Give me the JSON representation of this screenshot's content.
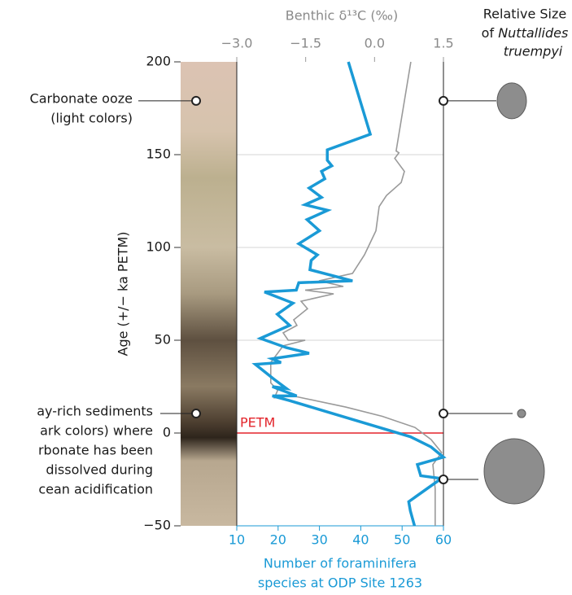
{
  "y_axis_label": "Age (+/− ka PETM)",
  "size_title": {
    "line1": "Relative Size",
    "line2": "of",
    "species": [
      "Nuttallides",
      "truempyi"
    ]
  },
  "chart_data": {
    "type": "line",
    "orientation": "vertical",
    "ylim": [
      -50,
      200
    ],
    "yticks": [
      200,
      150,
      100,
      50,
      0,
      {
        "value": -50,
        "label": "−50"
      }
    ],
    "xlim": [
      10,
      60
    ],
    "xticks": [
      10,
      20,
      30,
      40,
      50,
      60
    ],
    "x2lim": [
      -3.0,
      1.5
    ],
    "x2ticks": [
      {
        "value": -3.0,
        "label": "−3.0"
      },
      {
        "value": -1.5,
        "label": "−1.5"
      },
      {
        "value": 0,
        "label": "0.0"
      },
      1.5
    ],
    "xlabel": [
      "Number of foraminifera",
      "species at ODP Site 1263"
    ],
    "x2label": "Benthic δ¹³C (‰)",
    "grid": true,
    "petm": {
      "label": "PETM",
      "age": 0,
      "color": "#e3242b"
    },
    "series": [
      {
        "color": "#1a9ad6",
        "axis": "x",
        "ages": [
          200,
          161,
          152.6,
          147,
          144,
          141,
          137,
          132,
          127,
          123,
          120,
          115,
          109,
          102,
          96,
          93,
          88,
          82,
          81,
          77,
          76,
          70,
          64,
          58,
          51,
          46,
          43,
          40,
          38,
          37,
          29,
          24,
          25,
          20,
          20,
          17.5,
          -2,
          -7.5,
          -13,
          -17,
          -23,
          -24.5,
          -37,
          -42,
          -50
        ],
        "values": [
          37,
          42.3,
          31.9,
          31.9,
          33,
          30.5,
          31.3,
          27.5,
          30.5,
          26.5,
          32,
          27,
          30,
          25,
          29.5,
          28,
          27.7,
          38,
          25,
          24.4,
          16.7,
          23.6,
          19.8,
          22.8,
          15.7,
          22,
          27.5,
          18.5,
          20.7,
          14.5,
          19,
          22,
          18.6,
          24.5,
          18.6,
          22.7,
          52,
          57,
          60,
          53.7,
          54.5,
          59.5,
          51.6,
          52,
          53
        ]
      },
      {
        "color": "#9a9a9a",
        "axis": "x2",
        "ages": [
          200,
          152,
          151,
          148,
          141,
          135,
          128,
          122,
          109,
          96,
          86,
          82,
          79,
          77,
          75,
          71,
          67,
          61,
          58,
          54,
          50,
          50,
          47,
          38,
          27,
          23,
          19,
          20,
          14,
          9,
          3,
          -3.5,
          -10.5,
          -17,
          -30,
          -50
        ],
        "values": [
          0.79,
          0.47,
          0.53,
          0.44,
          0.65,
          0.58,
          0.26,
          0.1,
          0.03,
          -0.22,
          -0.48,
          -1.21,
          -0.68,
          -1.51,
          -0.89,
          -1.6,
          -1.46,
          -1.76,
          -1.69,
          -1.99,
          -1.88,
          -1.51,
          -1.99,
          -2.26,
          -2.26,
          -2.11,
          -2.18,
          -1.78,
          -0.63,
          0.17,
          0.88,
          1.23,
          1.46,
          1.27,
          1.32,
          1.32
        ]
      }
    ],
    "annotations": [
      {
        "age": 179,
        "lines": [
          "Carbonate ooze",
          "(light colors)"
        ]
      },
      {
        "age": 10.5,
        "lines": [
          "ay-rich sediments",
          "ark colors) where",
          "rbonate has been",
          " dissolved during",
          "cean acidification"
        ]
      }
    ],
    "size_marker_ages": [
      179,
      10.5,
      -25
    ]
  }
}
